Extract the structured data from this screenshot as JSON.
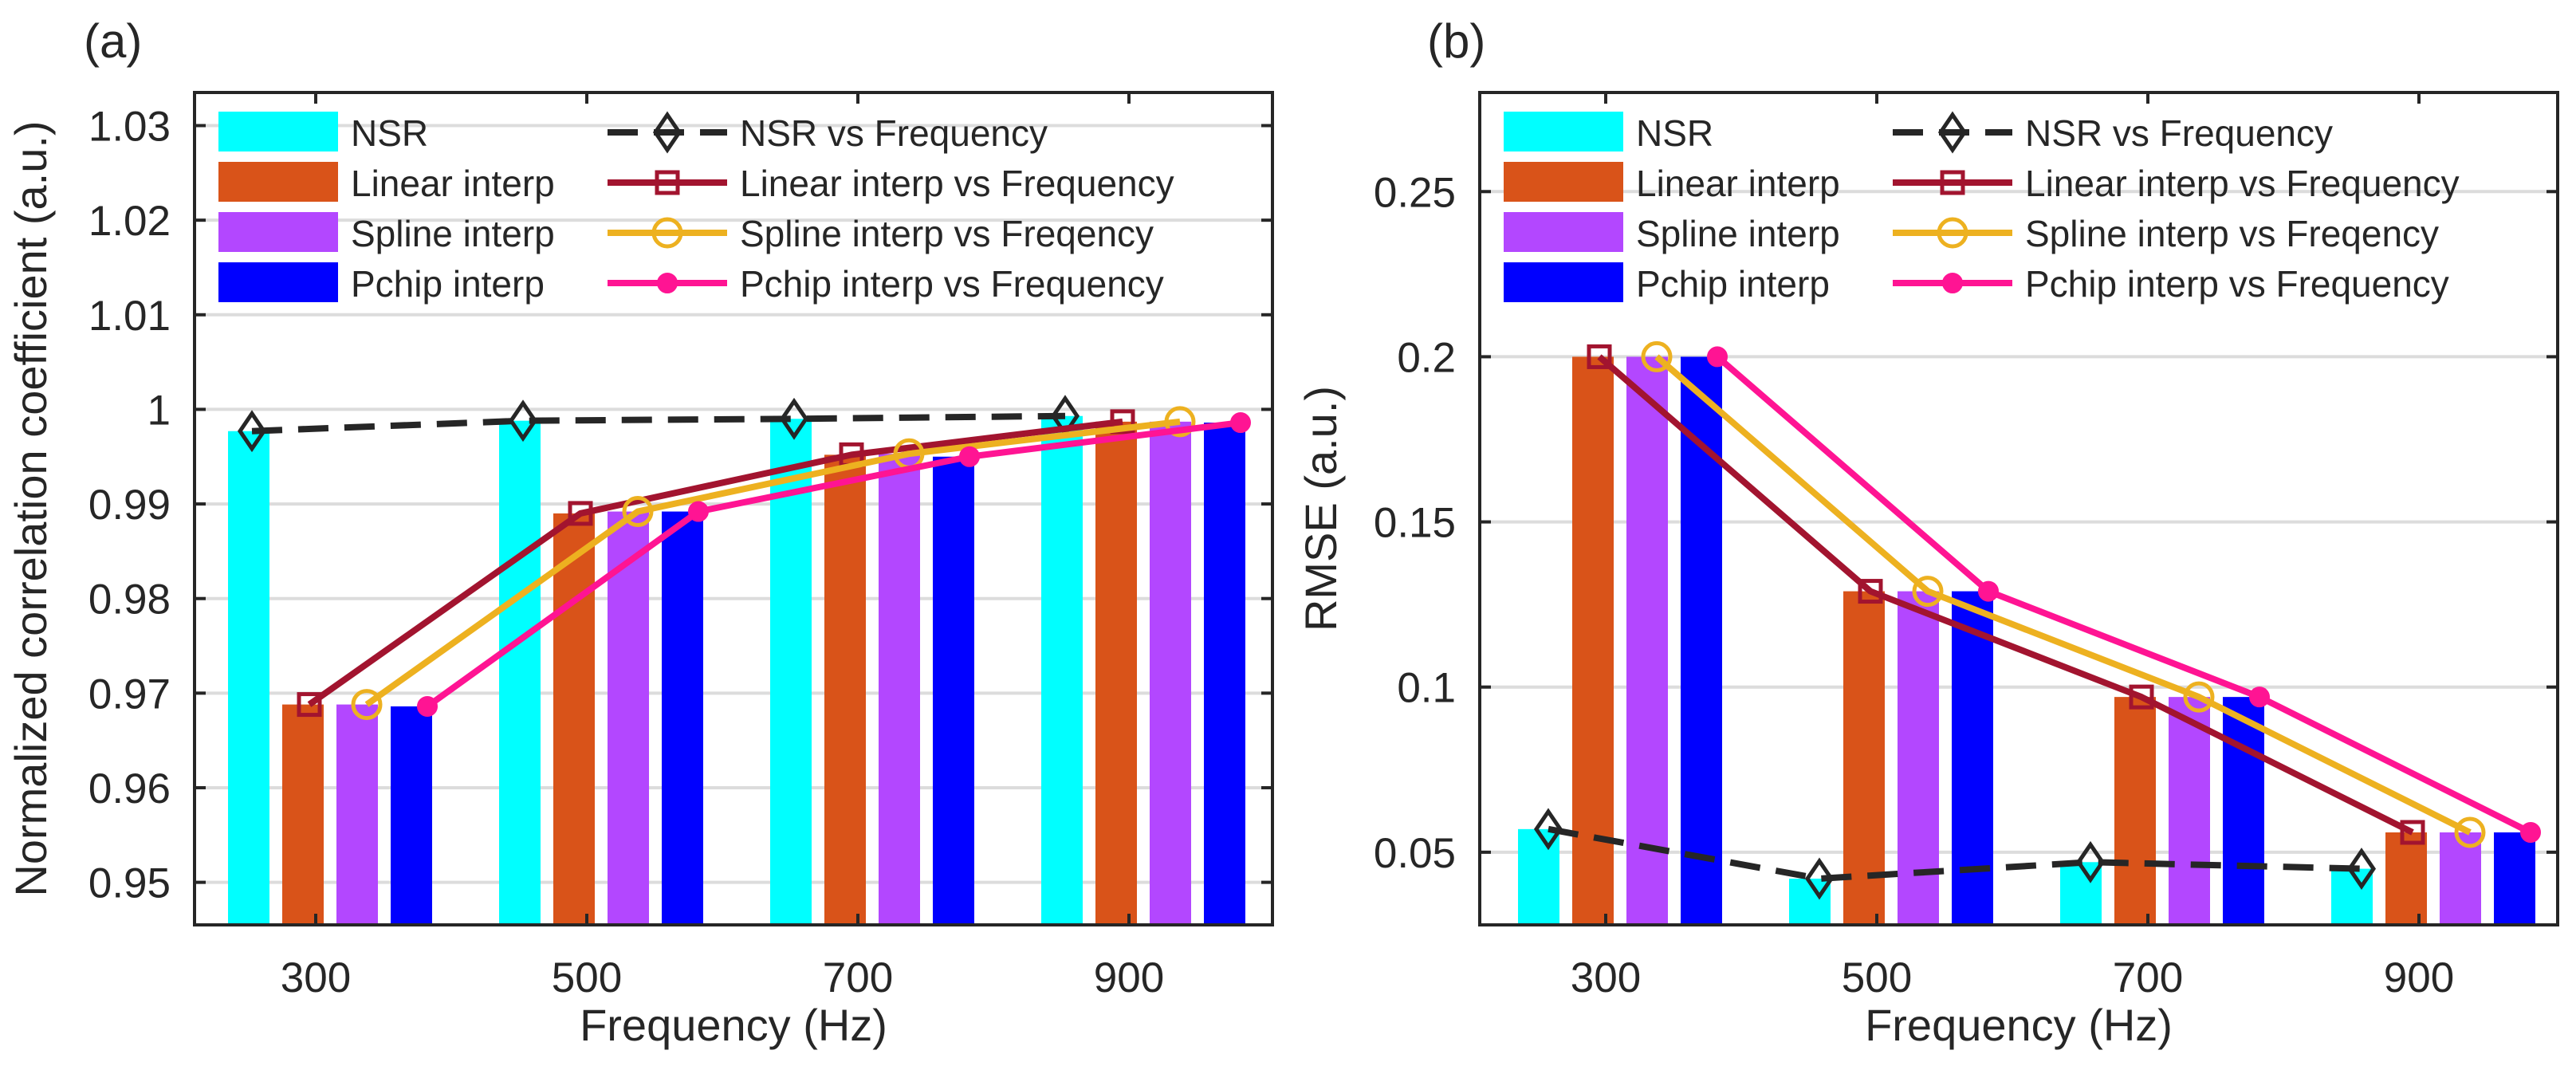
{
  "chart_data": [
    {
      "panel_label": "(a)",
      "type": "bar+line",
      "categories": [
        "300",
        "500",
        "700",
        "900"
      ],
      "xlabel": "Frequency (Hz)",
      "ylabel": "Normalized correlation coefficient (a.u.)",
      "ylim": [
        0.9455,
        1.0335
      ],
      "yticks": [
        0.95,
        0.96,
        0.97,
        0.98,
        0.99,
        1,
        1.01,
        1.02,
        1.03
      ],
      "ytick_labels": [
        "0.95",
        "0.96",
        "0.97",
        "0.98",
        "0.99",
        "1",
        "1.01",
        "1.02",
        "1.03"
      ],
      "grid": true,
      "bars": [
        {
          "name": "NSR",
          "color": "#00FFFF",
          "values": [
            0.9977,
            0.9988,
            0.999,
            0.9993
          ]
        },
        {
          "name": "Linear interp",
          "color": "#D95319",
          "values": [
            0.9688,
            0.989,
            0.9952,
            0.9987
          ]
        },
        {
          "name": "Spline interp",
          "color": "#B347FF",
          "values": [
            0.9688,
            0.9892,
            0.9953,
            0.9987
          ]
        },
        {
          "name": "Pchip interp",
          "color": "#0000FF",
          "values": [
            0.9686,
            0.9892,
            0.995,
            0.9986
          ]
        }
      ],
      "lines": [
        {
          "name": "NSR vs Frequency",
          "color": "#262626",
          "marker": "diamond",
          "dash": true,
          "values": [
            0.9977,
            0.9988,
            0.999,
            0.9993
          ]
        },
        {
          "name": "Linear interp vs Frequency",
          "color": "#A2142F",
          "marker": "square",
          "dash": false,
          "values": [
            0.9688,
            0.989,
            0.9952,
            0.9987
          ]
        },
        {
          "name": "Spline interp vs Freqency",
          "color": "#EDB120",
          "marker": "circle",
          "dash": false,
          "values": [
            0.9688,
            0.9892,
            0.9953,
            0.9987
          ]
        },
        {
          "name": "Pchip interp vs Frequency",
          "color": "#FF1493",
          "marker": "dot",
          "dash": false,
          "values": [
            0.9686,
            0.9892,
            0.995,
            0.9986
          ]
        }
      ]
    },
    {
      "panel_label": "(b)",
      "type": "bar+line",
      "categories": [
        "300",
        "500",
        "700",
        "900"
      ],
      "xlabel": "Frequency (Hz)",
      "ylabel": "RMSE (a.u.)",
      "ylim": [
        0.028,
        0.28
      ],
      "yticks": [
        0.05,
        0.1,
        0.15,
        0.2,
        0.25
      ],
      "ytick_labels": [
        "0.05",
        "0.1",
        "0.15",
        "0.2",
        "0.25"
      ],
      "grid": true,
      "bars": [
        {
          "name": "NSR",
          "color": "#00FFFF",
          "values": [
            0.057,
            0.042,
            0.047,
            0.045
          ]
        },
        {
          "name": "Linear interp",
          "color": "#D95319",
          "values": [
            0.2,
            0.129,
            0.097,
            0.056
          ]
        },
        {
          "name": "Spline interp",
          "color": "#B347FF",
          "values": [
            0.2,
            0.129,
            0.097,
            0.056
          ]
        },
        {
          "name": "Pchip interp",
          "color": "#0000FF",
          "values": [
            0.2,
            0.129,
            0.097,
            0.056
          ]
        }
      ],
      "lines": [
        {
          "name": "NSR vs Frequency",
          "color": "#262626",
          "marker": "diamond",
          "dash": true,
          "values": [
            0.057,
            0.042,
            0.047,
            0.045
          ]
        },
        {
          "name": "Linear interp vs Frequency",
          "color": "#A2142F",
          "marker": "square",
          "dash": false,
          "values": [
            0.2,
            0.129,
            0.097,
            0.056
          ]
        },
        {
          "name": "Spline interp vs Freqency",
          "color": "#EDB120",
          "marker": "circle",
          "dash": false,
          "values": [
            0.2,
            0.129,
            0.097,
            0.056
          ]
        },
        {
          "name": "Pchip interp vs Frequency",
          "color": "#FF1493",
          "marker": "dot",
          "dash": false,
          "values": [
            0.2,
            0.129,
            0.097,
            0.056
          ]
        }
      ]
    }
  ]
}
